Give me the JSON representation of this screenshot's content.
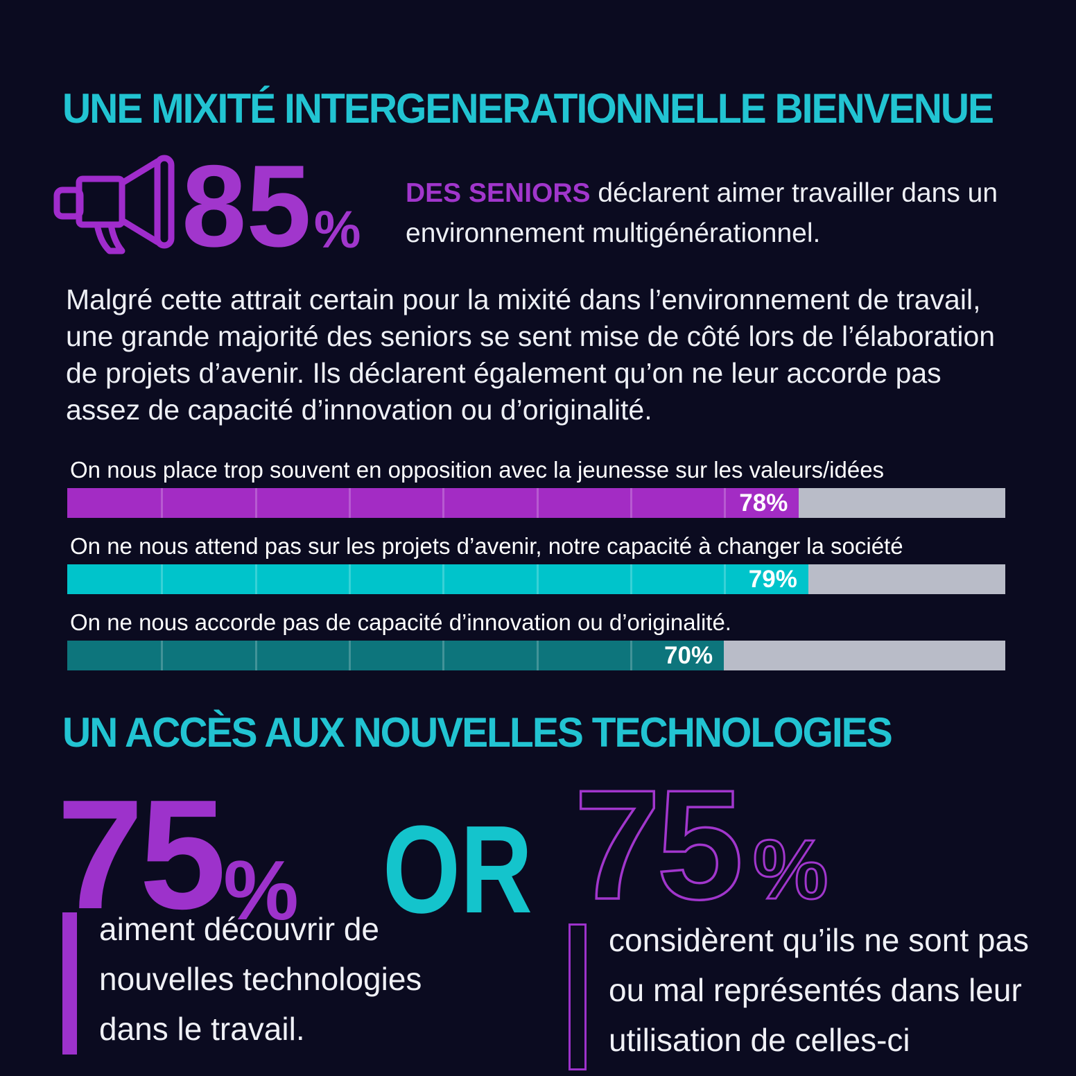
{
  "colors": {
    "background": "#0b0b20",
    "heading_teal": "#22c4d2",
    "accent_purple": "#a136cc",
    "connector_teal": "#14c4cc",
    "bar_track_grey": "#b9bcc8",
    "body_text": "#eef0f5"
  },
  "section1": {
    "title": "UNE MIXITÉ INTERGENERATIONNELLE BIENVENUE",
    "stat": {
      "value": "85",
      "percent": "%",
      "lead_strong": "DES SENIORS",
      "lead_rest": " déclarent aimer travailler dans un environnement multigénérationnel."
    },
    "paragraph": "Malgré cette attrait certain pour la mixité dans l’environnement de travail, une grande majorité des seniors se sent mise de côté lors de l’élaboration de projets d’avenir. Ils déclarent également qu’on ne leur accorde pas assez de capacité d’innovation ou d’originalité."
  },
  "chart_data": {
    "type": "bar",
    "orientation": "horizontal",
    "categories": [
      "On nous place trop souvent en opposition avec la jeunesse sur les valeurs/idées",
      "On ne nous attend pas sur les projets d’avenir, notre capacité à changer la société",
      "On ne nous accorde pas de capacité d’innovation ou d’originalité."
    ],
    "values": [
      78,
      79,
      70
    ],
    "value_labels": [
      "78%",
      "79%",
      "70%"
    ],
    "bar_colors": [
      "#a32cc4",
      "#00c4cb",
      "#0d757c"
    ],
    "track_color": "#b9bcc8",
    "xlim": [
      0,
      100
    ],
    "segment_divider_step_percent": 10,
    "legend": "none",
    "value_label_position": "inside-end"
  },
  "section2": {
    "title": "UN ACCÈS AUX NOUVELLES TECHNOLOGIES",
    "connector": "OR",
    "left_stat": {
      "value": "75",
      "percent": "%",
      "caption": "aiment découvrir de\nnouvelles technologies\ndans le travail."
    },
    "right_stat": {
      "value": "75",
      "percent": "%",
      "caption": "considèrent qu’ils ne sont pas\nou mal représentés dans leur\nutilisation de celles-ci"
    }
  }
}
